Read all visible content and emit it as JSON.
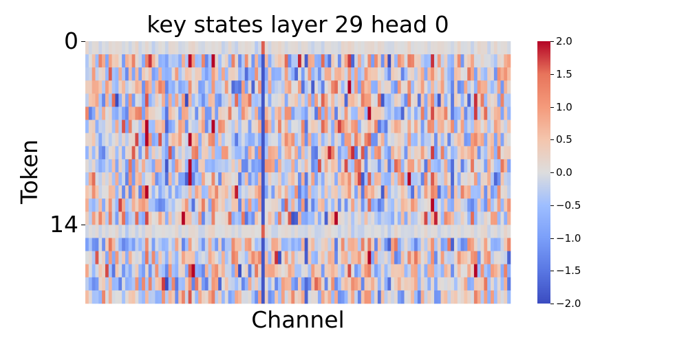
{
  "chart_data": {
    "type": "heatmap",
    "title": "key states layer 29 head 0",
    "xlabel": "Channel",
    "ylabel": "Token",
    "n_rows": 20,
    "n_cols": 128,
    "yticks": [
      {
        "row": 0,
        "label": "0"
      },
      {
        "row": 14,
        "label": "14"
      }
    ],
    "colormap": "coolwarm",
    "vmin": -2.0,
    "vmax": 2.0,
    "colorbar": {
      "ticks": [
        2.0,
        1.5,
        1.0,
        0.5,
        0.0,
        -0.5,
        -1.0,
        -1.5,
        -2.0
      ],
      "labels": [
        "2.0",
        "1.5",
        "1.0",
        "0.5",
        "0.0",
        "−0.5",
        "−1.0",
        "−1.5",
        "−2.0"
      ]
    },
    "row_profile": [
      0.15,
      1,
      1,
      1,
      1,
      1,
      1,
      1,
      1,
      1,
      1,
      1,
      1,
      1,
      0.15,
      1,
      1,
      1,
      1,
      1
    ],
    "column_bias": {
      "channels": [
        7,
        12,
        18,
        24,
        31,
        38,
        46,
        53,
        60,
        66,
        73,
        79,
        85,
        91,
        97,
        104,
        110,
        117,
        123
      ],
      "values": [
        0.7,
        -0.6,
        1.2,
        -1.0,
        1.3,
        0.9,
        -0.5,
        -1.8,
        0.4,
        -0.9,
        0.3,
        1.1,
        1.0,
        -0.7,
        0.8,
        1.2,
        -0.8,
        0.6,
        -0.6
      ]
    },
    "colors": {
      "min": "#3b4cc0",
      "mid": "#dddddd",
      "max": "#b40426"
    }
  }
}
